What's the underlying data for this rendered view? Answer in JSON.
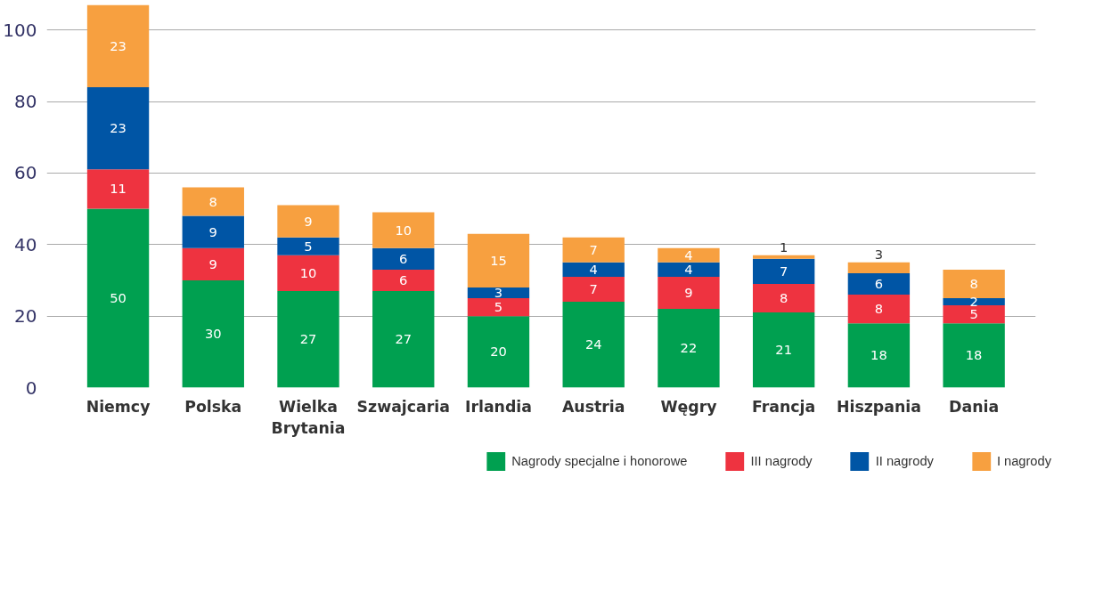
{
  "chart_data": {
    "type": "bar",
    "stacked": true,
    "categories": [
      "Niemcy",
      "Polska",
      "Wielka Brytania",
      "Szwajcaria",
      "Irlandia",
      "Austria",
      "Węgry",
      "Francja",
      "Hiszpania",
      "Dania"
    ],
    "series": [
      {
        "name": "Nagrody specjalne i honorowe",
        "color": "#00a050",
        "values": [
          50,
          30,
          27,
          27,
          20,
          24,
          22,
          21,
          18,
          18
        ]
      },
      {
        "name": "III nagrody",
        "color": "#ee3340",
        "values": [
          11,
          9,
          10,
          6,
          5,
          7,
          9,
          8,
          8,
          5
        ]
      },
      {
        "name": "II nagrody",
        "color": "#0055a5",
        "values": [
          23,
          9,
          5,
          6,
          3,
          4,
          4,
          7,
          6,
          2
        ]
      },
      {
        "name": "I nagrody",
        "color": "#f7a040",
        "values": [
          23,
          8,
          9,
          10,
          15,
          7,
          4,
          1,
          3,
          8
        ]
      }
    ],
    "ylim": [
      0,
      107
    ],
    "yticks": [
      0,
      20,
      40,
      60,
      80,
      100
    ],
    "grid": "y",
    "legend": "bottom",
    "data_labels": true
  }
}
